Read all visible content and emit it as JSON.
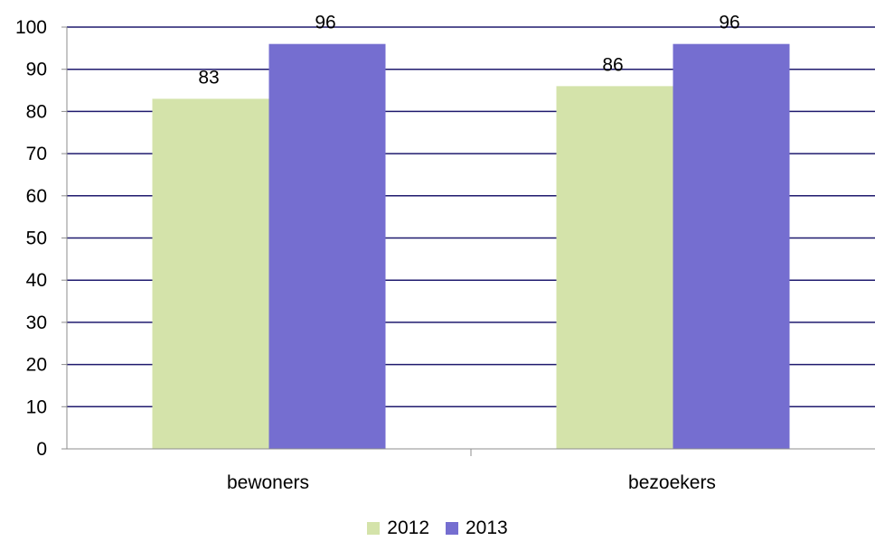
{
  "chart_data": {
    "type": "bar",
    "categories": [
      "bewoners",
      "bezoekers"
    ],
    "series": [
      {
        "name": "2012",
        "values": [
          83,
          86
        ],
        "color": "#d4e3aa"
      },
      {
        "name": "2013",
        "values": [
          96,
          96
        ],
        "color": "#756ed0"
      }
    ],
    "ylim": [
      0,
      100
    ],
    "yticks": [
      0,
      10,
      20,
      30,
      40,
      50,
      60,
      70,
      80,
      90,
      100
    ],
    "grid": true,
    "gridline_color": "#1f1a6e",
    "data_labels": true,
    "legend_position": "bottom"
  }
}
